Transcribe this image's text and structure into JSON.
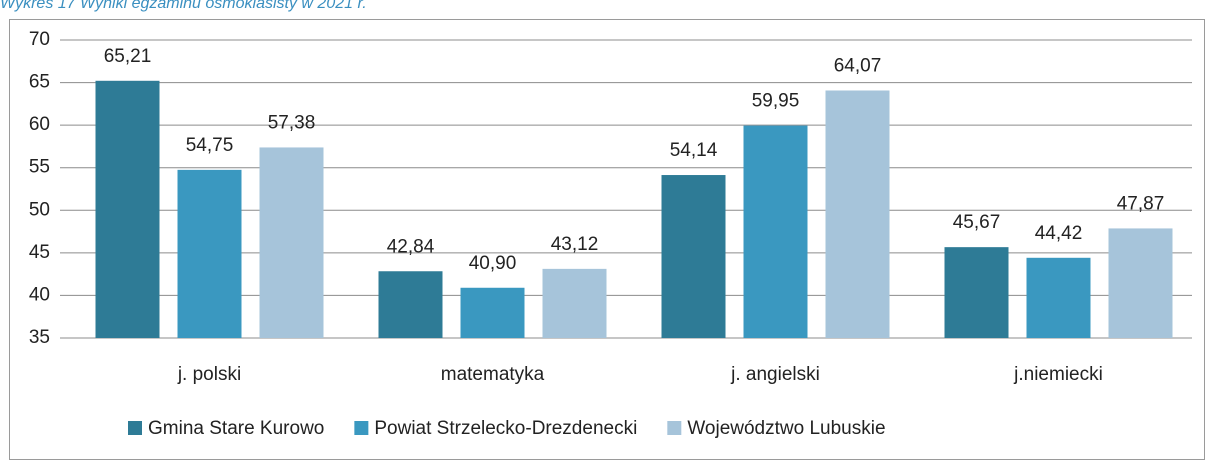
{
  "chart_data": {
    "type": "bar",
    "title": "Wykres 17 Wyniki egzaminu ósmoklasisty w 2021 r.",
    "categories": [
      "j. polski",
      "matematyka",
      "j. angielski",
      "j.niemiecki"
    ],
    "series": [
      {
        "name": "Gmina Stare Kurowo",
        "color": "#2e7b96",
        "values": [
          65.21,
          42.84,
          54.14,
          45.67
        ],
        "value_labels": [
          "65,21",
          "42,84",
          "54,14",
          "45,67"
        ]
      },
      {
        "name": "Powiat Strzelecko-Drezdenecki",
        "color": "#3a98c0",
        "values": [
          54.75,
          40.9,
          59.95,
          44.42
        ],
        "value_labels": [
          "54,75",
          "40,90",
          "59,95",
          "44,42"
        ]
      },
      {
        "name": "Województwo Lubuskie",
        "color": "#a6c4da",
        "values": [
          57.38,
          43.12,
          64.07,
          47.87
        ],
        "value_labels": [
          "57,38",
          "43,12",
          "64,07",
          "47,87"
        ]
      }
    ],
    "ylim": [
      35,
      70
    ],
    "yticks": [
      35,
      40,
      45,
      50,
      55,
      60,
      65,
      70
    ],
    "grid": true,
    "legend": "bottom"
  }
}
